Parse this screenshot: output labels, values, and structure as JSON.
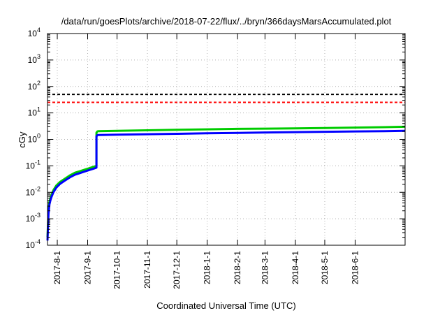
{
  "chart_data": {
    "type": "line",
    "title": "/data/run/goesPlots/archive/2018-07-22/flux/../bryn/366daysMarsAccumulated.plot",
    "xlabel": "Coordinated Universal Time (UTC)",
    "ylabel": "cGy",
    "y_scale": "log",
    "ylim": [
      0.0001,
      10000
    ],
    "xlim": [
      "2017-07-22",
      "2018-07-22"
    ],
    "grid": true,
    "y_ticks": [
      {
        "base": "10",
        "exp": "-4",
        "value": 0.0001
      },
      {
        "base": "10",
        "exp": "-3",
        "value": 0.001
      },
      {
        "base": "10",
        "exp": "-2",
        "value": 0.01
      },
      {
        "base": "10",
        "exp": "-1",
        "value": 0.1
      },
      {
        "base": "10",
        "exp": "0",
        "value": 1
      },
      {
        "base": "10",
        "exp": "1",
        "value": 10
      },
      {
        "base": "10",
        "exp": "2",
        "value": 100
      },
      {
        "base": "10",
        "exp": "3",
        "value": 1000
      },
      {
        "base": "10",
        "exp": "4",
        "value": 10000
      }
    ],
    "x_ticks": [
      {
        "label": "2017-8-1",
        "date": "2017-08-01"
      },
      {
        "label": "2017-9-1",
        "date": "2017-09-01"
      },
      {
        "label": "2017-10-1",
        "date": "2017-10-01"
      },
      {
        "label": "2017-11-1",
        "date": "2017-11-01"
      },
      {
        "label": "2017-12-1",
        "date": "2017-12-01"
      },
      {
        "label": "2018-1-1",
        "date": "2018-01-01"
      },
      {
        "label": "2018-2-1",
        "date": "2018-02-01"
      },
      {
        "label": "2018-3-1",
        "date": "2018-03-01"
      },
      {
        "label": "2018-4-1",
        "date": "2018-04-01"
      },
      {
        "label": "2018-5-1",
        "date": "2018-05-01"
      },
      {
        "label": "2018-6-1",
        "date": "2018-06-01"
      }
    ],
    "reference_lines": [
      {
        "value": 50,
        "color": "#000000",
        "style": "dashed"
      },
      {
        "value": 25,
        "color": "#ff0000",
        "style": "dashed"
      }
    ],
    "series": [
      {
        "color": "#00cc00",
        "x": [
          "2017-07-22",
          "2017-07-23",
          "2017-07-24",
          "2017-07-25",
          "2017-07-26",
          "2017-07-28",
          "2017-07-31",
          "2017-08-04",
          "2017-08-09",
          "2017-08-14",
          "2017-08-19",
          "2017-08-24",
          "2017-08-29",
          "2017-09-03",
          "2017-09-07",
          "2017-09-10",
          "2017-09-10",
          "2017-09-11",
          "2017-09-12",
          "2017-10-01",
          "2017-11-01",
          "2017-12-01",
          "2018-01-01",
          "2018-02-01",
          "2018-03-01",
          "2018-04-01",
          "2018-05-01",
          "2018-06-01",
          "2018-07-01",
          "2018-07-22"
        ],
        "y": [
          0.0002,
          0.002,
          0.0045,
          0.006,
          0.008,
          0.012,
          0.018,
          0.025,
          0.033,
          0.044,
          0.055,
          0.063,
          0.072,
          0.082,
          0.092,
          0.1,
          1.8,
          2.0,
          2.05,
          2.1,
          2.2,
          2.3,
          2.4,
          2.5,
          2.55,
          2.6,
          2.7,
          2.8,
          2.9,
          3.0
        ]
      },
      {
        "color": "#0000ff",
        "x": [
          "2017-07-22",
          "2017-07-23",
          "2017-07-24",
          "2017-07-25",
          "2017-07-26",
          "2017-07-28",
          "2017-07-31",
          "2017-08-04",
          "2017-08-09",
          "2017-08-14",
          "2017-08-19",
          "2017-08-24",
          "2017-08-29",
          "2017-09-03",
          "2017-09-07",
          "2017-09-10",
          "2017-09-10",
          "2017-09-11",
          "2017-09-12",
          "2017-10-01",
          "2017-11-01",
          "2017-12-01",
          "2018-01-01",
          "2018-02-01",
          "2018-03-01",
          "2018-04-01",
          "2018-05-01",
          "2018-06-01",
          "2018-07-01",
          "2018-07-22"
        ],
        "y": [
          0.00015,
          0.0015,
          0.0035,
          0.005,
          0.0065,
          0.01,
          0.015,
          0.021,
          0.028,
          0.037,
          0.046,
          0.053,
          0.061,
          0.07,
          0.078,
          0.085,
          1.3,
          1.45,
          1.47,
          1.5,
          1.57,
          1.63,
          1.7,
          1.76,
          1.82,
          1.88,
          1.94,
          2.0,
          2.05,
          2.1
        ]
      }
    ]
  }
}
